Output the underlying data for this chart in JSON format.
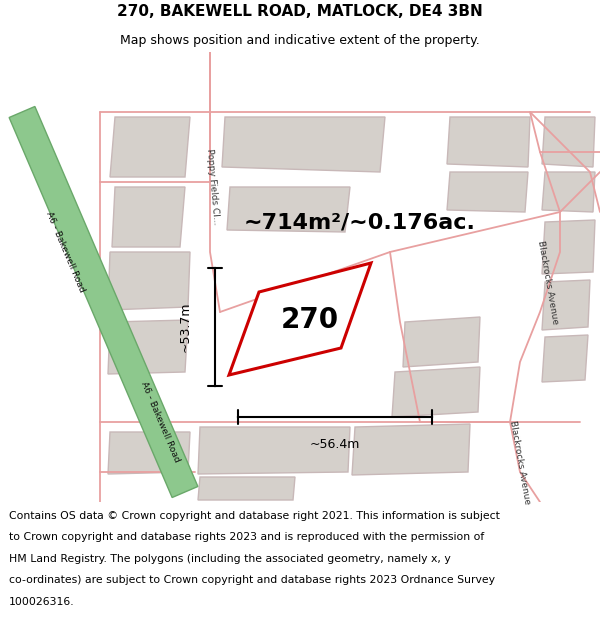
{
  "title": "270, BAKEWELL ROAD, MATLOCK, DE4 3BN",
  "subtitle": "Map shows position and indicative extent of the property.",
  "footer_lines": [
    "Contains OS data © Crown copyright and database right 2021. This information is subject",
    "to Crown copyright and database rights 2023 and is reproduced with the permission of",
    "HM Land Registry. The polygons (including the associated geometry, namely x, y",
    "co-ordinates) are subject to Crown copyright and database rights 2023 Ordnance Survey",
    "100026316."
  ],
  "area_label": "~714m²/~0.176ac.",
  "property_label": "270",
  "dim_height_label": "~53.7m",
  "dim_width_label": "~56.4m",
  "road_label_upper": "A6 - Bakewell Road",
  "road_label_lower": "A6 - Bakewell Road",
  "poppy_label": "Poppy Fields Cl...",
  "blackrocks_upper": "Blackrocks Avenue",
  "blackrocks_lower": "Blackrocks Avenue",
  "road_green": "#8dc88d",
  "road_green_edge": "#6aa86a",
  "property_red": "#cc0000",
  "building_fill": "#d5d0cb",
  "building_edge": "#c8b8b8",
  "road_pink": "#e8a0a0",
  "map_bg": "#ffffff",
  "title_fs": 11,
  "subtitle_fs": 9,
  "area_fs": 16,
  "label_fs": 20,
  "dim_fs": 9,
  "footer_fs": 7.8,
  "road_label_fs": 6.5,
  "street_fs": 6.5
}
